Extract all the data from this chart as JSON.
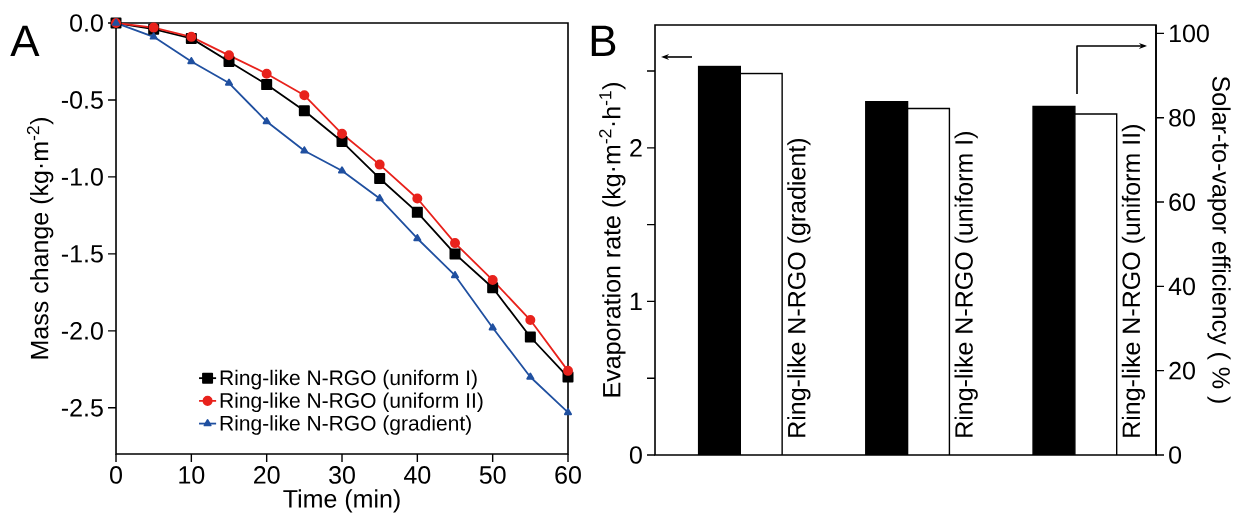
{
  "chart_data": [
    {
      "type": "line",
      "xlabel": "Time (min)",
      "ylabel": "Mass change (kg·m$^{-2}$)",
      "annotations": [
        "A"
      ],
      "x": [
        0,
        5,
        10,
        15,
        20,
        25,
        30,
        35,
        40,
        45,
        50,
        55,
        60
      ],
      "xlim": [
        0,
        60
      ],
      "ylim": [
        -2.8,
        0
      ],
      "xticks": [
        0,
        10,
        20,
        30,
        40,
        50,
        60
      ],
      "yticks": [
        {
          "value": -2.5,
          "label": "-2.5"
        },
        {
          "value": -2.0,
          "label": "-2.0"
        },
        {
          "value": -1.5,
          "label": "-1.5"
        },
        {
          "value": -1.0,
          "label": "-1.0"
        },
        {
          "value": -0.5,
          "label": "-0.5"
        },
        {
          "value": 0,
          "label": "0.0"
        }
      ],
      "legend": "bottom",
      "series": [
        {
          "name": "Ring-like N-RGO (uniform I)",
          "color": "#000000",
          "marker": "square",
          "values": [
            0,
            -0.04,
            -0.1,
            -0.25,
            -0.4,
            -0.57,
            -0.77,
            -1.01,
            -1.23,
            -1.5,
            -1.72,
            -2.04,
            -2.3
          ]
        },
        {
          "name": "Ring-like N-RGO (uniform II)",
          "color": "#e8221c",
          "marker": "circle",
          "values": [
            0,
            -0.03,
            -0.09,
            -0.21,
            -0.33,
            -0.47,
            -0.72,
            -0.92,
            -1.14,
            -1.43,
            -1.67,
            -1.93,
            -2.26
          ]
        },
        {
          "name": "Ring-like N-RGO (gradient)",
          "color": "#2050a0",
          "marker": "triangle",
          "values": [
            0,
            -0.09,
            -0.25,
            -0.39,
            -0.64,
            -0.83,
            -0.96,
            -1.14,
            -1.4,
            -1.64,
            -1.98,
            -2.3,
            -2.53
          ]
        }
      ]
    },
    {
      "type": "bar",
      "ylabel": "Evaporation rate (kg·m$^{-2}$·h$^{-1}$)",
      "y2label": "Solar-to-vapor efficiency ( % )",
      "annotations": [
        "B"
      ],
      "categories": [
        "Ring-like N-RGO (gradient)",
        "Ring-like N-RGO (uniform I)",
        "Ring-like N-RGO (uniform II)"
      ],
      "ylim": [
        0,
        2.8
      ],
      "yticks": [
        0,
        {
          "value": 0.5,
          "label": null
        },
        1,
        {
          "value": 1.5,
          "label": null
        },
        2,
        {
          "value": 2.5,
          "label": null
        }
      ],
      "y2lim": [
        0,
        102
      ],
      "y2ticks": [
        0,
        20,
        40,
        60,
        80,
        100
      ],
      "series": [
        {
          "color": "#000000",
          "values": [
            2.53,
            2.3,
            2.27
          ]
        },
        {
          "color": "#ffffff",
          "axis": "y2",
          "values": [
            90.5,
            82.2,
            80.9
          ]
        }
      ]
    }
  ]
}
